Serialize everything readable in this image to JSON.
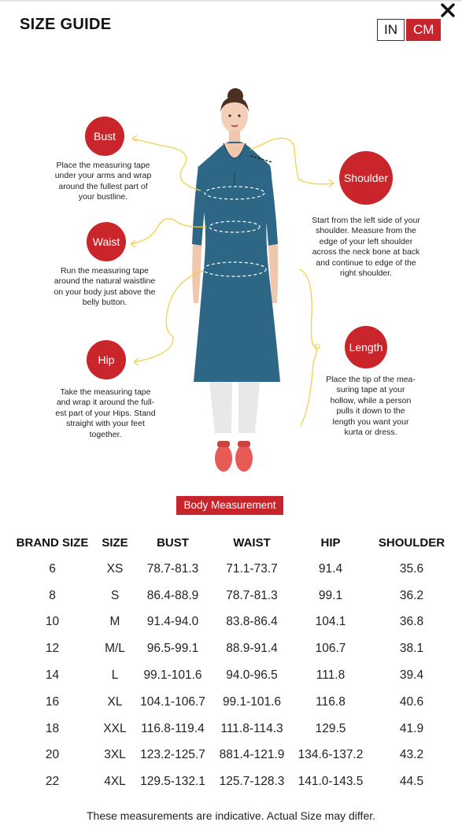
{
  "header": {
    "title": "SIZE GUIDE",
    "units": [
      {
        "label": "IN",
        "active": false
      },
      {
        "label": "CM",
        "active": true
      }
    ],
    "close_icon": "close-icon"
  },
  "figure": {
    "labels": {
      "bust": "Bust",
      "waist": "Waist",
      "hip": "Hip",
      "shoulder": "Shoulder",
      "length": "Length"
    },
    "descriptions": {
      "bust": [
        "Place the measuring tape",
        "under your arms and wrap",
        "around the fullest part of",
        "your bustline."
      ],
      "waist": [
        "Run the measuring tape",
        "around the natural waistline",
        "on your body just above the",
        "belly button."
      ],
      "hip": [
        "Take the measuring tape",
        "and wrap it around the full-",
        "est part of your Hips. Stand",
        "straight with your feet",
        "together."
      ],
      "shoulder": [
        "Start from the left side of your",
        "shoulder. Measure from the",
        "edge of your left shoulder",
        "across the neck bone at back",
        "and continue to edge of the",
        "right shoulder."
      ],
      "length": [
        "Place the tip of the mea-",
        "suring tape at your",
        "hollow, while a person",
        "pulls it down to the",
        "length you want your",
        "kurta or dress."
      ]
    },
    "colors": {
      "accent": "#c9252b",
      "kurta": "#2e6686",
      "arrows": "#f2d14b"
    }
  },
  "body_measurement_button": "Body Measurement",
  "table": {
    "headers": [
      "BRAND SIZE",
      "SIZE",
      "BUST",
      "WAIST",
      "HIP",
      "SHOULDER"
    ],
    "rows": [
      [
        "6",
        "XS",
        "78.7-81.3",
        "71.1-73.7",
        "91.4",
        "35.6"
      ],
      [
        "8",
        "S",
        "86.4-88.9",
        "78.7-81.3",
        "99.1",
        "36.2"
      ],
      [
        "10",
        "M",
        "91.4-94.0",
        "83.8-86.4",
        "104.1",
        "36.8"
      ],
      [
        "12",
        "M/L",
        "96.5-99.1",
        "88.9-91.4",
        "106.7",
        "38.1"
      ],
      [
        "14",
        "L",
        "99.1-101.6",
        "94.0-96.5",
        "111.8",
        "39.4"
      ],
      [
        "16",
        "XL",
        "104.1-106.7",
        "99.1-101.6",
        "116.8",
        "40.6"
      ],
      [
        "18",
        "XXL",
        "116.8-119.4",
        "111.8-114.3",
        "129.5",
        "41.9"
      ],
      [
        "20",
        "3XL",
        "123.2-125.7",
        "881.4-121.9",
        "134.6-137.2",
        "43.2"
      ],
      [
        "22",
        "4XL",
        "129.5-132.1",
        "125.7-128.3",
        "141.0-143.5",
        "44.5"
      ]
    ]
  },
  "footnote": "These measurements are indicative. Actual Size may differ."
}
